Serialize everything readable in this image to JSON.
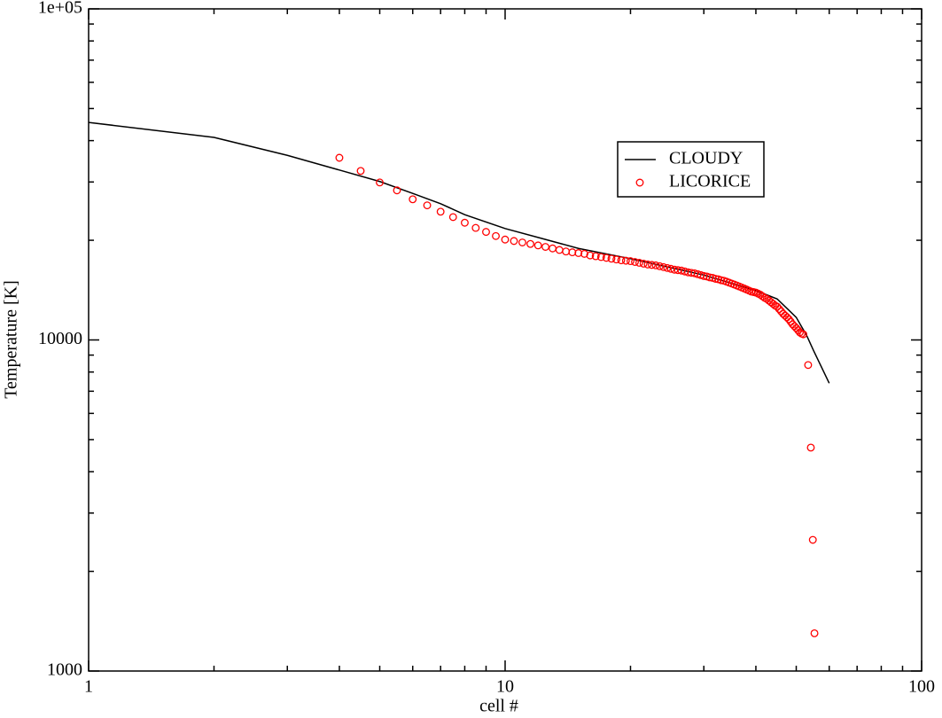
{
  "chart_data": {
    "type": "line",
    "xlabel": "cell #",
    "ylabel": "Temperature [K]",
    "xscale": "log",
    "yscale": "log",
    "xlim": [
      1,
      100
    ],
    "ylim": [
      1000,
      100000
    ],
    "xticks": [
      1,
      10,
      100
    ],
    "yticks": [
      1000,
      10000,
      {
        "value": 100000,
        "label": "1e+05"
      }
    ],
    "xminorticks": [
      2,
      3,
      4,
      5,
      6,
      7,
      8,
      9,
      20,
      30,
      40,
      50,
      60,
      70,
      80,
      90
    ],
    "yminorticks": [
      2000,
      3000,
      4000,
      5000,
      6000,
      7000,
      8000,
      9000,
      20000,
      30000,
      40000,
      50000,
      60000,
      70000,
      80000,
      90000
    ],
    "series": [
      {
        "name": "CLOUDY",
        "type": "line",
        "color": "#000000",
        "x": [
          1,
          2,
          3,
          4,
          5,
          6,
          7,
          8,
          10,
          12,
          15,
          20,
          30,
          40,
          45,
          50,
          53,
          55,
          60
        ],
        "values": [
          45400,
          40900,
          36100,
          32600,
          30100,
          27700,
          25800,
          23900,
          21700,
          20400,
          18900,
          17600,
          15700,
          14100,
          13300,
          11700,
          10300,
          9300,
          7400
        ]
      },
      {
        "name": "LICORICE",
        "type": "scatter",
        "color": "#ff0000",
        "x": [
          4,
          4.5,
          5,
          5.5,
          6,
          6.5,
          7,
          7.5,
          8,
          8.5,
          9,
          9.5,
          10,
          10.5,
          11,
          11.5,
          12,
          12.5,
          13,
          13.5,
          14,
          14.5,
          15,
          15.5,
          16,
          16.5,
          17,
          17.5,
          18,
          18.5,
          19,
          19.5,
          20,
          20.5,
          21,
          21.5,
          22,
          22.5,
          23,
          23.5,
          24,
          24.5,
          25,
          25.5,
          26,
          26.5,
          27,
          27.5,
          28,
          28.5,
          29,
          29.5,
          30,
          30.5,
          31,
          31.5,
          32,
          32.5,
          33,
          33.5,
          34,
          34.5,
          35,
          35.5,
          36,
          36.5,
          37,
          37.5,
          38,
          38.5,
          39,
          39.5,
          40,
          40.5,
          41,
          41.5,
          42,
          42.5,
          43,
          43.5,
          44,
          44.5,
          45,
          45.5,
          46,
          46.5,
          47,
          47.5,
          48,
          48.5,
          49,
          49.5,
          50,
          50.5,
          51,
          51.5,
          52,
          53.4,
          54.2,
          54.8,
          55.3
        ],
        "values": [
          35500,
          32400,
          29900,
          28300,
          26600,
          25500,
          24400,
          23500,
          22600,
          21800,
          21200,
          20600,
          20100,
          19900,
          19700,
          19500,
          19300,
          19100,
          18900,
          18700,
          18500,
          18400,
          18300,
          18200,
          18000,
          17900,
          17800,
          17700,
          17600,
          17500,
          17400,
          17350,
          17300,
          17200,
          17100,
          17000,
          16900,
          16850,
          16800,
          16700,
          16600,
          16500,
          16400,
          16300,
          16250,
          16200,
          16100,
          16000,
          15950,
          15900,
          15800,
          15700,
          15600,
          15550,
          15450,
          15400,
          15300,
          15250,
          15150,
          15100,
          15000,
          14900,
          14800,
          14700,
          14600,
          14500,
          14400,
          14300,
          14200,
          14100,
          14000,
          13950,
          13900,
          13800,
          13700,
          13550,
          13400,
          13300,
          13150,
          13000,
          12850,
          12700,
          12600,
          12400,
          12200,
          12000,
          11850,
          11700,
          11550,
          11350,
          11150,
          11000,
          10860,
          10700,
          10540,
          10450,
          10400,
          8400,
          4730,
          2490,
          1300
        ]
      }
    ]
  }
}
